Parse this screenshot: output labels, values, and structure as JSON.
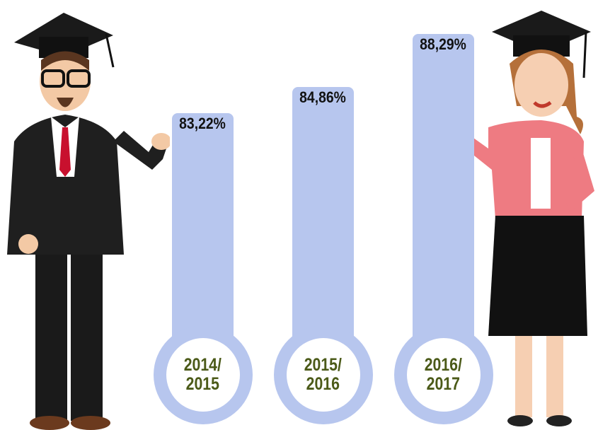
{
  "chart_data": {
    "type": "bar",
    "categories": [
      "2014/\n2015",
      "2015/\n2016",
      "2016/\n2017"
    ],
    "values": [
      83.22,
      84.86,
      88.29
    ],
    "value_labels": [
      "83,22%",
      "84,86%",
      "88,29%"
    ],
    "color": "#b7c6ee"
  }
}
